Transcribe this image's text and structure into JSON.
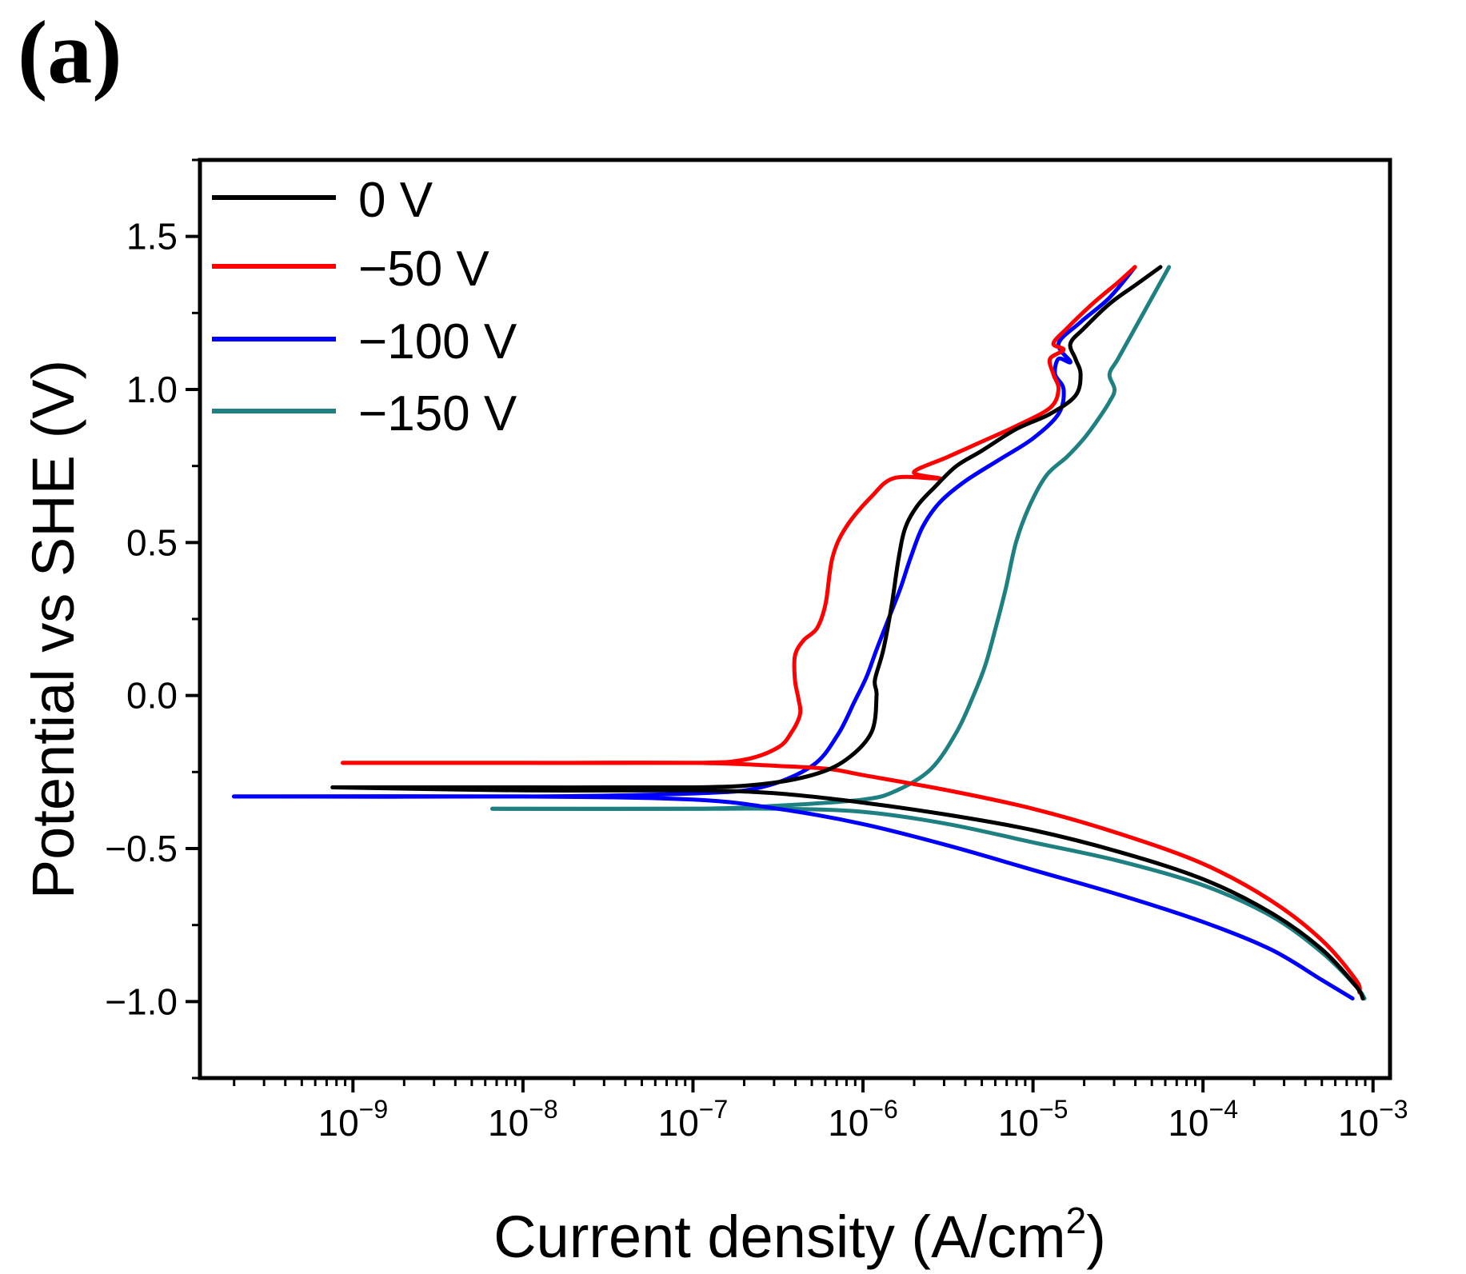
{
  "panel_label": "(a)",
  "chart_data": {
    "type": "line",
    "title": "",
    "xlabel": "Current density (A/cm",
    "xlabel_sup": "2",
    "xlabel_close": ")",
    "ylabel": "Potential vs SHE (V)",
    "xscale": "log",
    "xlim_log10": [
      -9.9,
      -2.9
    ],
    "ylim": [
      -1.25,
      1.75
    ],
    "grid": false,
    "legend_position": "top-left",
    "x_tick_base": "10",
    "x_ticks": [
      {
        "exp": "−9",
        "log": -9
      },
      {
        "exp": "−8",
        "log": -8
      },
      {
        "exp": "−7",
        "log": -7
      },
      {
        "exp": "−6",
        "log": -6
      },
      {
        "exp": "−5",
        "log": -5
      },
      {
        "exp": "−4",
        "log": -4
      },
      {
        "exp": "−3",
        "log": -3
      }
    ],
    "y_ticks": [
      {
        "label": "1.5",
        "value": 1.5
      },
      {
        "label": "1.0",
        "value": 1.0
      },
      {
        "label": "0.5",
        "value": 0.5
      },
      {
        "label": "0.0",
        "value": 0.0
      },
      {
        "label": "−0.5",
        "value": -0.5
      },
      {
        "label": "−1.0",
        "value": -1.0
      }
    ],
    "series": [
      {
        "name": "0 V",
        "color": "#000000",
        "anodic": [
          [
            -9.12,
            -0.3
          ],
          [
            -8,
            -0.3
          ],
          [
            -7,
            -0.3
          ],
          [
            -6.6,
            -0.29
          ],
          [
            -6.3,
            -0.26
          ],
          [
            -6.1,
            -0.21
          ],
          [
            -5.95,
            -0.12
          ],
          [
            -5.92,
            0.0
          ],
          [
            -5.93,
            0.05
          ],
          [
            -5.88,
            0.15
          ],
          [
            -5.83,
            0.3
          ],
          [
            -5.79,
            0.45
          ],
          [
            -5.75,
            0.55
          ],
          [
            -5.68,
            0.62
          ],
          [
            -5.58,
            0.68
          ],
          [
            -5.45,
            0.75
          ],
          [
            -5.3,
            0.8
          ],
          [
            -5.1,
            0.87
          ],
          [
            -4.9,
            0.92
          ],
          [
            -4.75,
            0.98
          ],
          [
            -4.72,
            1.05
          ],
          [
            -4.75,
            1.1
          ],
          [
            -4.78,
            1.15
          ],
          [
            -4.7,
            1.2
          ],
          [
            -4.55,
            1.28
          ],
          [
            -4.4,
            1.34
          ],
          [
            -4.25,
            1.4
          ]
        ],
        "cathodic": [
          [
            -9.12,
            -0.3
          ],
          [
            -8,
            -0.31
          ],
          [
            -7,
            -0.31
          ],
          [
            -6.5,
            -0.32
          ],
          [
            -6,
            -0.35
          ],
          [
            -5.5,
            -0.39
          ],
          [
            -5,
            -0.44
          ],
          [
            -4.5,
            -0.51
          ],
          [
            -4,
            -0.6
          ],
          [
            -3.6,
            -0.71
          ],
          [
            -3.3,
            -0.83
          ],
          [
            -3.1,
            -0.95
          ],
          [
            -3.06,
            -0.99
          ]
        ]
      },
      {
        "name": "−50 V",
        "color": "#ff0000",
        "anodic": [
          [
            -9.06,
            -0.22
          ],
          [
            -8,
            -0.22
          ],
          [
            -7,
            -0.22
          ],
          [
            -6.7,
            -0.21
          ],
          [
            -6.5,
            -0.17
          ],
          [
            -6.42,
            -0.12
          ],
          [
            -6.37,
            -0.06
          ],
          [
            -6.38,
            -0.01
          ],
          [
            -6.4,
            0.05
          ],
          [
            -6.4,
            0.13
          ],
          [
            -6.35,
            0.18
          ],
          [
            -6.27,
            0.22
          ],
          [
            -6.22,
            0.3
          ],
          [
            -6.18,
            0.45
          ],
          [
            -6.1,
            0.55
          ],
          [
            -5.95,
            0.65
          ],
          [
            -5.82,
            0.71
          ],
          [
            -5.6,
            0.71
          ],
          [
            -5.55,
            0.71
          ],
          [
            -5.7,
            0.73
          ],
          [
            -5.5,
            0.78
          ],
          [
            -5.3,
            0.83
          ],
          [
            -5.1,
            0.88
          ],
          [
            -4.9,
            0.94
          ],
          [
            -4.85,
            1.0
          ],
          [
            -4.88,
            1.05
          ],
          [
            -4.9,
            1.1
          ],
          [
            -4.82,
            1.13
          ],
          [
            -4.88,
            1.15
          ],
          [
            -4.8,
            1.2
          ],
          [
            -4.65,
            1.28
          ],
          [
            -4.5,
            1.35
          ],
          [
            -4.4,
            1.4
          ]
        ],
        "cathodic": [
          [
            -9.06,
            -0.22
          ],
          [
            -8,
            -0.22
          ],
          [
            -7,
            -0.22
          ],
          [
            -6.5,
            -0.23
          ],
          [
            -6.2,
            -0.24
          ],
          [
            -6,
            -0.26
          ],
          [
            -5.5,
            -0.31
          ],
          [
            -5,
            -0.37
          ],
          [
            -4.5,
            -0.45
          ],
          [
            -4,
            -0.55
          ],
          [
            -3.6,
            -0.67
          ],
          [
            -3.3,
            -0.8
          ],
          [
            -3.1,
            -0.93
          ],
          [
            -3.08,
            -0.97
          ]
        ]
      },
      {
        "name": "−100 V",
        "color": "#0000ff",
        "anodic": [
          [
            -9.7,
            -0.33
          ],
          [
            -8,
            -0.33
          ],
          [
            -7,
            -0.32
          ],
          [
            -6.6,
            -0.3
          ],
          [
            -6.3,
            -0.23
          ],
          [
            -6.15,
            -0.13
          ],
          [
            -6.05,
            -0.02
          ],
          [
            -5.98,
            0.06
          ],
          [
            -5.92,
            0.15
          ],
          [
            -5.85,
            0.25
          ],
          [
            -5.78,
            0.35
          ],
          [
            -5.72,
            0.45
          ],
          [
            -5.65,
            0.55
          ],
          [
            -5.55,
            0.63
          ],
          [
            -5.4,
            0.7
          ],
          [
            -5.2,
            0.77
          ],
          [
            -5.0,
            0.84
          ],
          [
            -4.85,
            0.92
          ],
          [
            -4.82,
            1.0
          ],
          [
            -4.87,
            1.05
          ],
          [
            -4.85,
            1.1
          ],
          [
            -4.78,
            1.09
          ],
          [
            -4.85,
            1.15
          ],
          [
            -4.72,
            1.22
          ],
          [
            -4.55,
            1.3
          ],
          [
            -4.4,
            1.4
          ]
        ],
        "cathodic": [
          [
            -9.7,
            -0.33
          ],
          [
            -8,
            -0.33
          ],
          [
            -7,
            -0.34
          ],
          [
            -6.5,
            -0.37
          ],
          [
            -6,
            -0.42
          ],
          [
            -5.5,
            -0.49
          ],
          [
            -5,
            -0.57
          ],
          [
            -4.5,
            -0.65
          ],
          [
            -4,
            -0.74
          ],
          [
            -3.6,
            -0.83
          ],
          [
            -3.3,
            -0.93
          ],
          [
            -3.12,
            -0.99
          ]
        ]
      },
      {
        "name": "−150 V",
        "color": "#1e8080",
        "anodic": [
          [
            -8.18,
            -0.37
          ],
          [
            -7,
            -0.37
          ],
          [
            -6.5,
            -0.36
          ],
          [
            -6,
            -0.34
          ],
          [
            -5.8,
            -0.31
          ],
          [
            -5.6,
            -0.24
          ],
          [
            -5.45,
            -0.12
          ],
          [
            -5.35,
            0.0
          ],
          [
            -5.28,
            0.1
          ],
          [
            -5.22,
            0.22
          ],
          [
            -5.16,
            0.35
          ],
          [
            -5.1,
            0.5
          ],
          [
            -5.02,
            0.62
          ],
          [
            -4.92,
            0.72
          ],
          [
            -4.8,
            0.78
          ],
          [
            -4.7,
            0.84
          ],
          [
            -4.62,
            0.9
          ],
          [
            -4.55,
            0.96
          ],
          [
            -4.52,
            1.0
          ],
          [
            -4.55,
            1.05
          ],
          [
            -4.5,
            1.1
          ],
          [
            -4.4,
            1.2
          ],
          [
            -4.3,
            1.3
          ],
          [
            -4.2,
            1.4
          ]
        ],
        "cathodic": [
          [
            -8.18,
            -0.37
          ],
          [
            -7,
            -0.37
          ],
          [
            -6.5,
            -0.37
          ],
          [
            -6,
            -0.38
          ],
          [
            -5.5,
            -0.42
          ],
          [
            -5,
            -0.48
          ],
          [
            -4.5,
            -0.54
          ],
          [
            -4,
            -0.62
          ],
          [
            -3.6,
            -0.72
          ],
          [
            -3.3,
            -0.84
          ],
          [
            -3.1,
            -0.95
          ],
          [
            -3.05,
            -0.99
          ]
        ]
      }
    ]
  }
}
